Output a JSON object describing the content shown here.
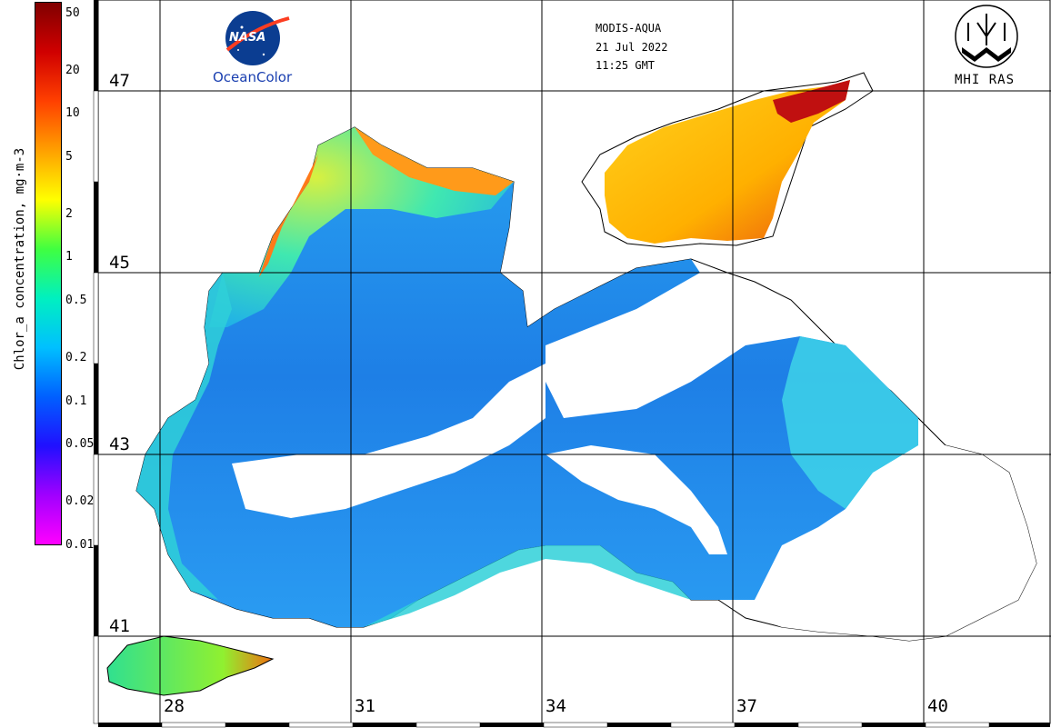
{
  "header": {
    "sensor": "MODIS-AQUA",
    "date": "21 Jul 2022",
    "time": "11:25 GMT"
  },
  "logos": {
    "nasa": "NASA",
    "oceancolor": "OceanColor",
    "mhi": "MHI RAS"
  },
  "colorbar": {
    "title": "Chlor_a concentration, mg·m-3",
    "ticks": [
      "50",
      "20",
      "10",
      "5",
      "2",
      "1",
      "0.5",
      "0.2",
      "0.1",
      "0.05",
      "0.02",
      "0.01"
    ],
    "scale": "log",
    "range": [
      0.01,
      60
    ],
    "colors": [
      "#ff00ff",
      "#a000ff",
      "#2010ff",
      "#0060ff",
      "#00c0ff",
      "#00f0c0",
      "#40ff40",
      "#ffff00",
      "#ffa000",
      "#ff4000",
      "#d00000",
      "#800000"
    ]
  },
  "latitudes": [
    "47",
    "45",
    "43",
    "41"
  ],
  "longitudes": [
    "28",
    "31",
    "34",
    "37",
    "40"
  ],
  "colors": {
    "open_sea": "#1e7fe6",
    "coastal": "#2fd0d8",
    "shelf_high": "#f5b820",
    "no_data": "#ffffff"
  }
}
